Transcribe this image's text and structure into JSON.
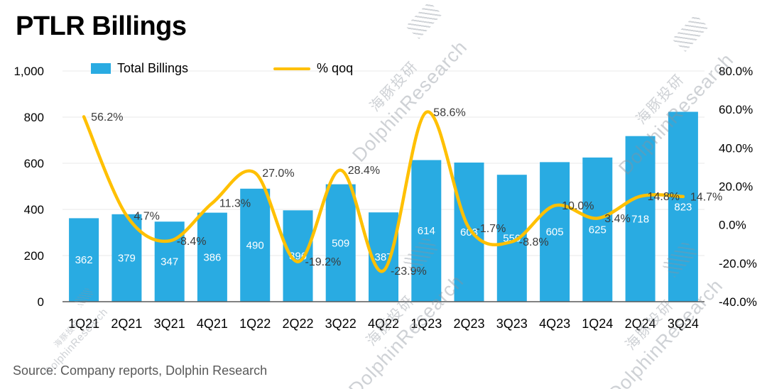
{
  "title": "PTLR Billings",
  "source": "Source:  Company reports, Dolphin Research",
  "watermark": {
    "cn": "海豚投研",
    "en": "DolphinResearch"
  },
  "legend": [
    {
      "label": "Total Billings",
      "type": "bar",
      "color": "#29abe2"
    },
    {
      "label": "% qoq",
      "type": "line",
      "color": "#ffc000"
    }
  ],
  "chart_data": {
    "type": "bar+line",
    "title": "PTLR Billings",
    "categories": [
      "1Q21",
      "2Q21",
      "3Q21",
      "4Q21",
      "1Q22",
      "2Q22",
      "3Q22",
      "4Q22",
      "1Q23",
      "2Q23",
      "3Q23",
      "4Q23",
      "1Q24",
      "2Q24",
      "3Q24"
    ],
    "series": [
      {
        "name": "Total Billings",
        "type": "bar",
        "axis": "left",
        "color": "#29abe2",
        "values": [
          362,
          379,
          347,
          386,
          490,
          396,
          509,
          387,
          614,
          603,
          550,
          605,
          625,
          718,
          823
        ],
        "labels": [
          "362",
          "379",
          "347",
          "386",
          "490",
          "396",
          "509",
          "387",
          "614",
          "603",
          "550",
          "605",
          "625",
          "718",
          "823"
        ]
      },
      {
        "name": "% qoq",
        "type": "line",
        "axis": "right",
        "color": "#ffc000",
        "values": [
          56.2,
          4.7,
          -8.4,
          11.3,
          27.0,
          -19.2,
          28.4,
          -23.9,
          58.6,
          -1.7,
          -8.8,
          10.0,
          3.4,
          14.8,
          14.7
        ],
        "labels": [
          "56.2%",
          "4.7%",
          "-8.4%",
          "11.3%",
          "27.0%",
          "-19.2%",
          "28.4%",
          "-23.9%",
          "58.6%",
          "-1.7%",
          "-8.8%",
          "10.0%",
          "3.4%",
          "14.8%",
          "14.7%"
        ]
      }
    ],
    "left_axis": {
      "min": 0,
      "max": 1000,
      "step": 200,
      "tick_labels": [
        "0",
        "200",
        "400",
        "600",
        "800",
        "1,000"
      ]
    },
    "right_axis": {
      "min": -40,
      "max": 80,
      "step": 20,
      "tick_labels": [
        "-40.0%",
        "-20.0%",
        "0.0%",
        "20.0%",
        "40.0%",
        "60.0%",
        "80.0%"
      ]
    },
    "grid": true,
    "legend_position": "top"
  }
}
